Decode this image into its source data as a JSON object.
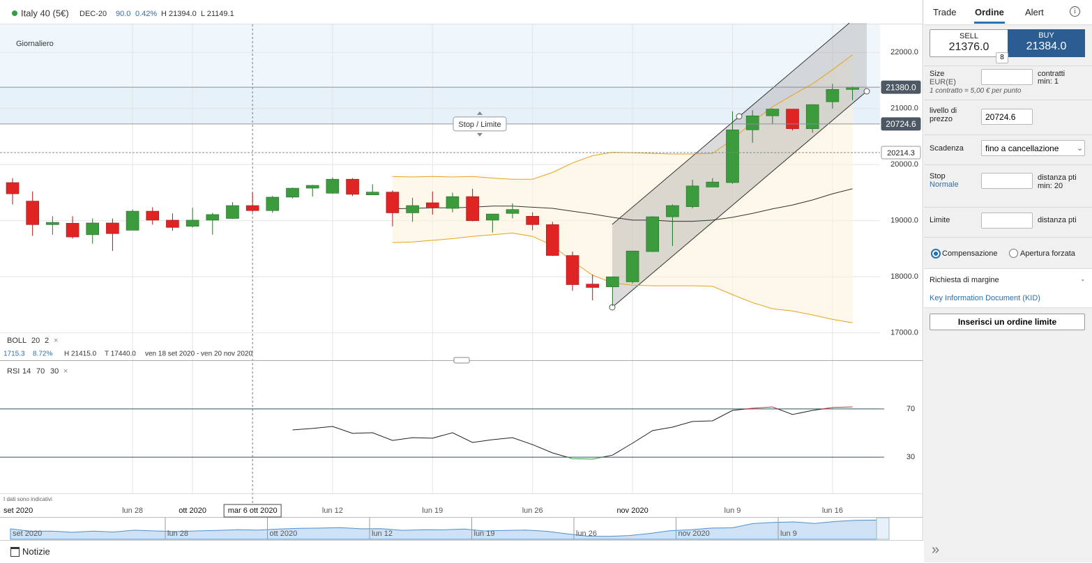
{
  "header": {
    "instrument": "Italy 40 (5€)",
    "expiry": "DEC-20",
    "change": "90.0",
    "change_pct": "0.42%",
    "high": "H 21394.0",
    "low": "L 21149.1"
  },
  "tabs": [
    "Trade",
    "Ordine",
    "Alert"
  ],
  "chart_data": {
    "type": "candlestick",
    "timeframe": "Giornaliero",
    "categories": [
      "set 2020",
      null,
      null,
      null,
      null,
      null,
      "lun 28",
      null,
      null,
      "ott 2020",
      null,
      null,
      "mar 6 ott 2020",
      null,
      null,
      null,
      "lun 12",
      null,
      null,
      null,
      null,
      "lun 19",
      null,
      null,
      null,
      null,
      "lun 26",
      null,
      null,
      null,
      null,
      "nov 2020",
      null,
      null,
      null,
      null,
      "lun 9",
      null,
      null,
      null,
      null,
      "lun 16",
      null
    ],
    "crosshair_at": 12,
    "open": [
      19680,
      19350,
      18930,
      18955,
      18750,
      18960,
      18830,
      19170,
      19010,
      18900,
      19010,
      19040,
      19270,
      19180,
      19420,
      19580,
      19490,
      19740,
      19460,
      19510,
      19140,
      19320,
      19220,
      19430,
      19010,
      19130,
      19080,
      18930,
      18380,
      17870,
      17820,
      17910,
      18450,
      19070,
      19250,
      19600,
      19680,
      20620,
      20870,
      20990,
      20640,
      21120,
      21340
    ],
    "high": [
      19760,
      19520,
      19080,
      19080,
      19040,
      19040,
      19200,
      19240,
      19130,
      19230,
      19140,
      19330,
      19500,
      19440,
      19590,
      19640,
      19770,
      19760,
      19650,
      19540,
      19410,
      19520,
      19500,
      19570,
      19120,
      19310,
      19150,
      18980,
      18450,
      18040,
      18000,
      18460,
      19080,
      19290,
      19730,
      19760,
      20950,
      20970,
      21000,
      20990,
      21070,
      21440,
      21394
    ],
    "low": [
      19290,
      18730,
      18750,
      18680,
      18590,
      18460,
      18830,
      18930,
      18820,
      18880,
      18750,
      19030,
      19150,
      19140,
      19400,
      19430,
      19480,
      19440,
      19460,
      18900,
      18980,
      19110,
      19150,
      18990,
      18790,
      19040,
      18830,
      18370,
      17750,
      17580,
      17480,
      17880,
      18440,
      18550,
      19220,
      19600,
      19660,
      20390,
      20720,
      20610,
      20570,
      21000,
      21149
    ],
    "close": [
      19480,
      18930,
      18970,
      18710,
      18960,
      18770,
      19170,
      19010,
      18880,
      19010,
      19110,
      19270,
      19180,
      19420,
      19580,
      19630,
      19740,
      19470,
      19510,
      19140,
      19270,
      19240,
      19430,
      19000,
      19120,
      19200,
      18930,
      18380,
      17860,
      17810,
      18000,
      18460,
      19070,
      19270,
      19620,
      19690,
      20620,
      20870,
      20990,
      20640,
      21070,
      21340,
      21380
    ],
    "up_color": "#3b9b3d",
    "down_color": "#e02323",
    "ylim": [
      16500,
      22500
    ],
    "yticks": [
      {
        "value": 17000,
        "label": "17000.0"
      },
      {
        "value": 18000,
        "label": "18000.0"
      },
      {
        "value": 19000,
        "label": "19000.0"
      },
      {
        "value": 20000,
        "label": "20000.0"
      },
      {
        "value": 21000,
        "label": "21000.0"
      },
      {
        "value": 22000,
        "label": "22000.0"
      }
    ],
    "grid": true,
    "price_lines": [
      {
        "value": 21380,
        "label": "21380.0",
        "style": "solid",
        "box": "dark"
      },
      {
        "value": 20724.6,
        "label": "20724.6",
        "style": "solid",
        "box": "dark"
      },
      {
        "value": 20214.3,
        "label": "20214.3",
        "style": "dashed",
        "box": "light"
      }
    ],
    "order_tag": "Stop / Limite",
    "bollinger": {
      "title": "BOLL",
      "period": 20,
      "stddev": 2,
      "color": "#e8a21c",
      "middle_color": "#333333",
      "upper": [
        null,
        null,
        null,
        null,
        null,
        null,
        null,
        null,
        null,
        null,
        null,
        null,
        null,
        null,
        null,
        null,
        null,
        null,
        null,
        19790,
        19780,
        19790,
        19780,
        19790,
        19760,
        19740,
        19740,
        19860,
        20030,
        20160,
        20220,
        20210,
        20200,
        20190,
        20190,
        20200,
        20450,
        20760,
        21030,
        21240,
        21440,
        21690,
        21960
      ],
      "middle": [
        null,
        null,
        null,
        null,
        null,
        null,
        null,
        null,
        null,
        null,
        null,
        null,
        null,
        null,
        null,
        null,
        null,
        null,
        null,
        19210,
        19220,
        19230,
        19230,
        19240,
        19260,
        19260,
        19240,
        19220,
        19170,
        19120,
        19060,
        19010,
        19010,
        18990,
        18990,
        19010,
        19060,
        19130,
        19210,
        19280,
        19370,
        19480,
        19570
      ],
      "lower": [
        null,
        null,
        null,
        null,
        null,
        null,
        null,
        null,
        null,
        null,
        null,
        null,
        null,
        null,
        null,
        null,
        null,
        null,
        null,
        18610,
        18620,
        18650,
        18680,
        18720,
        18750,
        18780,
        18720,
        18560,
        18270,
        18030,
        17890,
        17850,
        17840,
        17840,
        17840,
        17830,
        17680,
        17540,
        17430,
        17390,
        17320,
        17240,
        17180
      ],
      "stats": [
        "1715.3",
        "8.72%",
        "H 21415.0",
        "T 17440.0",
        "ven 18 set 2020 - ven 20 nov 2020"
      ]
    },
    "rsi": {
      "title": "RSI",
      "period": 14,
      "overbought": 70,
      "oversold": 30,
      "ylim": [
        0,
        100
      ],
      "yticks": [
        70,
        30
      ],
      "values": [
        null,
        null,
        null,
        null,
        null,
        null,
        null,
        null,
        null,
        null,
        null,
        null,
        null,
        null,
        52.6,
        53.8,
        55.5,
        49.7,
        50.3,
        43.9,
        46.2,
        45.7,
        50.3,
        42.2,
        44.5,
        46.2,
        40.4,
        33.5,
        28.8,
        28.3,
        31.7,
        41.6,
        52.0,
        54.9,
        59.6,
        60.1,
        68.8,
        70.6,
        71.7,
        65.4,
        68.8,
        71.2,
        71.7
      ]
    },
    "note": "I dati sono indicativi",
    "navigator_labels": [
      "set 2020",
      "lun 28",
      "ott 2020",
      "lun 12",
      "lun 19",
      "lun 26",
      "nov 2020",
      "lun 9"
    ]
  },
  "order_panel": {
    "sell_label": "SELL",
    "sell_price": "21376.0",
    "buy_label": "BUY",
    "buy_price": "21384.0",
    "spread": "8",
    "size_label": "Size",
    "size_unit": "EUR(E)",
    "size_hint": [
      "contratti",
      "min: 1"
    ],
    "size_note": "1 contratto = 5,00 € per punto",
    "level_label": "livello di prezzo",
    "level_value": "20724.6",
    "expiry_label": "Scadenza",
    "expiry_value": "fino a cancellazione",
    "stop_label": "Stop",
    "stop_type": "Normale",
    "stop_hint": [
      "distanza pti",
      "min: 20"
    ],
    "limit_label": "Limite",
    "limit_hint": "distanza pti",
    "radio": [
      "Compensazione",
      "Apertura forzata"
    ],
    "margin_label": "Richiesta di margine",
    "margin_value": "-",
    "kid": "Key Information Document (KID)",
    "submit": "Inserisci un ordine limite"
  },
  "footer": "Notizie"
}
